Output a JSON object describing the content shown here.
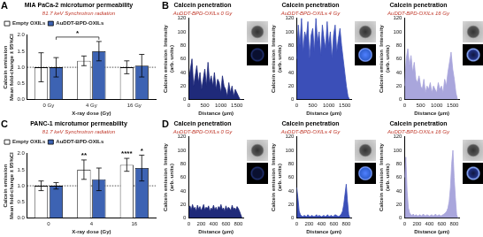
{
  "chart_data": [
    {
      "type": "bar",
      "panel": "A",
      "title": "MIA PaCa-2 microtumor permeability",
      "subtitle": "81.7 keV Synchrotron radiation",
      "y_label": [
        "Calcein emission",
        "Mean fold-change ± 95%CI"
      ],
      "x_label": "X-ray dose (Gy)",
      "categories": [
        "0 Gy",
        "4 Gy",
        "16 Gy"
      ],
      "series": [
        {
          "name": "Empty OXILs",
          "color": "#ffffff",
          "values": [
            1.0,
            1.2,
            1.0
          ],
          "errors": [
            0.45,
            0.15,
            0.2
          ]
        },
        {
          "name": "AuDDT-BPD-OXILs",
          "color": "#3d63b3",
          "values": [
            1.0,
            1.5,
            1.05
          ],
          "errors": [
            0.3,
            0.3,
            0.35
          ]
        }
      ],
      "ylim": [
        0,
        2.0
      ],
      "yticks": [
        {
          "value": 0,
          "label": "0.0"
        },
        {
          "value": 0.5,
          "label": "0.5"
        },
        {
          "value": 1.0,
          "label": "1.0"
        },
        {
          "value": 1.5,
          "label": "1.5"
        },
        {
          "value": 2.0,
          "label": "2.0"
        }
      ],
      "hline": 1.0,
      "annotations": [
        {
          "text": "*",
          "series": "AuDDT-BPD-OXILs",
          "categories": [
            "0 Gy",
            "4 Gy"
          ]
        }
      ],
      "legend": "top-left",
      "grid": false
    },
    {
      "type": "line",
      "panel": "B",
      "title": "Calcein penetration",
      "subtitle": "AuDDT-BPD-OXILs 0 Gy",
      "y_label": [
        "Calcein emission  Intensity",
        "(arb. units)"
      ],
      "x_label": "Distance (μm)",
      "x": [
        0,
        50,
        100,
        150,
        200,
        250,
        300,
        350,
        400,
        450,
        500,
        550,
        600,
        650,
        700,
        750,
        800,
        850,
        900,
        950,
        1000,
        1050,
        1100,
        1150,
        1200,
        1250,
        1300,
        1350,
        1400,
        1450,
        1500,
        1550,
        1600,
        1650
      ],
      "values": [
        30,
        45,
        60,
        20,
        35,
        50,
        25,
        40,
        15,
        30,
        45,
        20,
        55,
        25,
        35,
        20,
        40,
        15,
        30,
        25,
        10,
        35,
        20,
        15,
        5,
        25,
        10,
        20,
        5,
        15,
        10,
        5,
        0,
        0
      ],
      "color": "#1f2a7a",
      "xlim": [
        0,
        1700
      ],
      "xticks": [
        0,
        500,
        1000,
        1500
      ],
      "ylim": [
        0,
        120
      ],
      "yticks": [
        0,
        20,
        40,
        60,
        80,
        100,
        120
      ],
      "grid": false
    },
    {
      "type": "line",
      "title": "Calcein penetration",
      "subtitle": "AuDDT-BPD-OXILs 4 Gy",
      "y_label": [
        "Calcein emission  Intensity",
        "(arb. units)"
      ],
      "x_label": "Distance (μm)",
      "x": [
        0,
        50,
        100,
        150,
        200,
        250,
        300,
        350,
        400,
        450,
        500,
        550,
        600,
        650,
        700,
        750,
        800,
        850,
        900,
        950,
        1000,
        1050,
        1100,
        1150,
        1200,
        1250,
        1300,
        1350,
        1400,
        1450,
        1500,
        1550,
        1600,
        1650
      ],
      "values": [
        60,
        110,
        80,
        120,
        70,
        100,
        90,
        115,
        60,
        95,
        105,
        70,
        120,
        85,
        100,
        65,
        110,
        90,
        75,
        115,
        80,
        100,
        60,
        95,
        110,
        70,
        90,
        105,
        80,
        60,
        40,
        20,
        5,
        0
      ],
      "color": "#3b4fb8",
      "xlim": [
        0,
        1700
      ],
      "xticks": [
        0,
        500,
        1000,
        1500
      ],
      "ylim": [
        0,
        120
      ],
      "yticks": [
        0,
        20,
        40,
        60,
        80,
        100,
        120
      ],
      "grid": false
    },
    {
      "type": "line",
      "title": "Calcein penetration",
      "subtitle": "AuDDT-BPD-OXILs 16 Gy",
      "y_label": [
        "Calcein emission  Intensity",
        "(arb. units)"
      ],
      "x_label": "Distance (μm)",
      "x": [
        0,
        50,
        100,
        150,
        200,
        250,
        300,
        350,
        400,
        450,
        500,
        550,
        600,
        650,
        700,
        750,
        800,
        850,
        900,
        950,
        1000,
        1050,
        1100,
        1150,
        1200,
        1250,
        1300,
        1350,
        1400,
        1450,
        1500,
        1550,
        1600,
        1650
      ],
      "values": [
        20,
        60,
        75,
        50,
        65,
        40,
        55,
        30,
        25,
        35,
        20,
        15,
        30,
        10,
        20,
        15,
        25,
        10,
        20,
        15,
        10,
        25,
        15,
        20,
        10,
        30,
        20,
        40,
        55,
        70,
        45,
        30,
        10,
        0
      ],
      "color": "#a9a6dc",
      "xlim": [
        0,
        1700
      ],
      "xticks": [
        0,
        500,
        1000,
        1500
      ],
      "ylim": [
        0,
        120
      ],
      "yticks": [
        0,
        20,
        40,
        60,
        80,
        100,
        120
      ],
      "grid": false
    },
    {
      "type": "bar",
      "panel": "C",
      "title": "PANC-1 microtumor permeability",
      "subtitle": "81.7 keV Synchrotron radiation",
      "y_label": [
        "Calcein emission",
        "Mean fold-change ± 95%CI"
      ],
      "x_label": "X-ray dose (Gy)",
      "categories": [
        "0",
        "4",
        "16"
      ],
      "series": [
        {
          "name": "Empty OXILs",
          "color": "#ffffff",
          "values": [
            1.0,
            1.5,
            1.65
          ],
          "errors": [
            0.15,
            0.3,
            0.2
          ]
        },
        {
          "name": "AuDDT-BPD-OXILs",
          "color": "#3d63b3",
          "values": [
            1.0,
            1.2,
            1.55
          ],
          "errors": [
            0.1,
            0.35,
            0.4
          ]
        }
      ],
      "ylim": [
        0,
        2.0
      ],
      "yticks": [
        {
          "value": 0,
          "label": "0.0"
        },
        {
          "value": 0.5,
          "label": "0.5"
        },
        {
          "value": 1.0,
          "label": "1.0"
        },
        {
          "value": 1.5,
          "label": "1.5"
        },
        {
          "value": 2.0,
          "label": "2.0"
        }
      ],
      "hline": 1.0,
      "annotations": [
        {
          "text": "**",
          "series": "Empty OXILs",
          "categories": [
            "4"
          ]
        },
        {
          "text": "****",
          "series": "Empty OXILs",
          "categories": [
            "16"
          ]
        },
        {
          "text": "*",
          "series": "AuDDT-BPD-OXILs",
          "categories": [
            "16"
          ]
        }
      ],
      "legend": "top-left",
      "grid": false
    },
    {
      "type": "line",
      "panel": "D",
      "title": "Calcein penetration",
      "subtitle": "AuDDT-BPD-OXILs 0 Gy",
      "y_label": [
        "Calcein emission  Intensity",
        "(arb. units)"
      ],
      "x_label": "Distance (μm)",
      "x": [
        0,
        20,
        40,
        60,
        80,
        100,
        120,
        140,
        160,
        180,
        200,
        220,
        240,
        260,
        280,
        300,
        320,
        340,
        360,
        380,
        400,
        420,
        440,
        460,
        480,
        500,
        520,
        540,
        560,
        580,
        600,
        620,
        640,
        660,
        680,
        700,
        720,
        740,
        760,
        780,
        800,
        820,
        840,
        860
      ],
      "values": [
        15,
        18,
        12,
        20,
        14,
        16,
        10,
        19,
        13,
        17,
        11,
        15,
        20,
        12,
        16,
        14,
        18,
        10,
        15,
        13,
        19,
        12,
        16,
        11,
        17,
        14,
        20,
        13,
        15,
        10,
        18,
        12,
        16,
        14,
        11,
        19,
        13,
        15,
        12,
        17,
        14,
        10,
        5,
        0
      ],
      "color": "#1f2a7a",
      "xlim": [
        0,
        880
      ],
      "xticks": [
        0,
        200,
        400,
        600,
        800
      ],
      "ylim": [
        0,
        120
      ],
      "yticks": [
        0,
        20,
        40,
        60,
        80,
        100,
        120
      ],
      "grid": false
    },
    {
      "type": "line",
      "title": "Calcein penetration",
      "subtitle": "AuDDT-BPD-OXILs 4 Gy",
      "y_label": [
        "Calcein emission  Intensity",
        "(arb. units)"
      ],
      "x_label": "Distance (μm)",
      "x": [
        0,
        20,
        40,
        60,
        80,
        100,
        120,
        140,
        160,
        180,
        200,
        220,
        240,
        260,
        280,
        300,
        320,
        340,
        360,
        380,
        400,
        420,
        440,
        460,
        480,
        500,
        520,
        540,
        560,
        580,
        600,
        620,
        640,
        660,
        680,
        700,
        720,
        740,
        760,
        780,
        800,
        820,
        840,
        860
      ],
      "values": [
        45,
        30,
        10,
        5,
        3,
        2,
        4,
        3,
        2,
        5,
        3,
        2,
        4,
        3,
        2,
        3,
        5,
        2,
        4,
        3,
        2,
        3,
        4,
        2,
        3,
        5,
        2,
        3,
        4,
        2,
        3,
        5,
        4,
        3,
        2,
        4,
        6,
        10,
        20,
        35,
        50,
        25,
        5,
        0
      ],
      "color": "#3b4fb8",
      "xlim": [
        0,
        880
      ],
      "xticks": [
        0,
        200,
        400,
        600,
        800
      ],
      "ylim": [
        0,
        120
      ],
      "yticks": [
        0,
        20,
        40,
        60,
        80,
        100,
        120
      ],
      "grid": false
    },
    {
      "type": "line",
      "title": "Calcein penetration",
      "subtitle": "AuDDT-BPD-OXILs 16 Gy",
      "y_label": [
        "Calcein emission  Intensity",
        "(arb. units)"
      ],
      "x_label": "Distance (μm)",
      "x": [
        0,
        20,
        40,
        60,
        80,
        100,
        120,
        140,
        160,
        180,
        200,
        220,
        240,
        260,
        280,
        300,
        320,
        340,
        360,
        380,
        400,
        420,
        440,
        460,
        480,
        500,
        520,
        540,
        560,
        580,
        600,
        620,
        640,
        660,
        680,
        700,
        720,
        740,
        760,
        780,
        800,
        820,
        840,
        860
      ],
      "values": [
        60,
        90,
        40,
        15,
        8,
        5,
        4,
        6,
        3,
        5,
        4,
        3,
        5,
        4,
        3,
        6,
        4,
        3,
        5,
        4,
        3,
        4,
        5,
        3,
        4,
        6,
        3,
        4,
        5,
        3,
        4,
        5,
        6,
        8,
        10,
        15,
        25,
        45,
        80,
        100,
        60,
        30,
        5,
        0
      ],
      "color": "#a9a6dc",
      "xlim": [
        0,
        880
      ],
      "xticks": [
        0,
        200,
        400,
        600,
        800
      ],
      "ylim": [
        0,
        120
      ],
      "yticks": [
        0,
        20,
        40,
        60,
        80,
        100,
        120
      ],
      "grid": false
    }
  ]
}
